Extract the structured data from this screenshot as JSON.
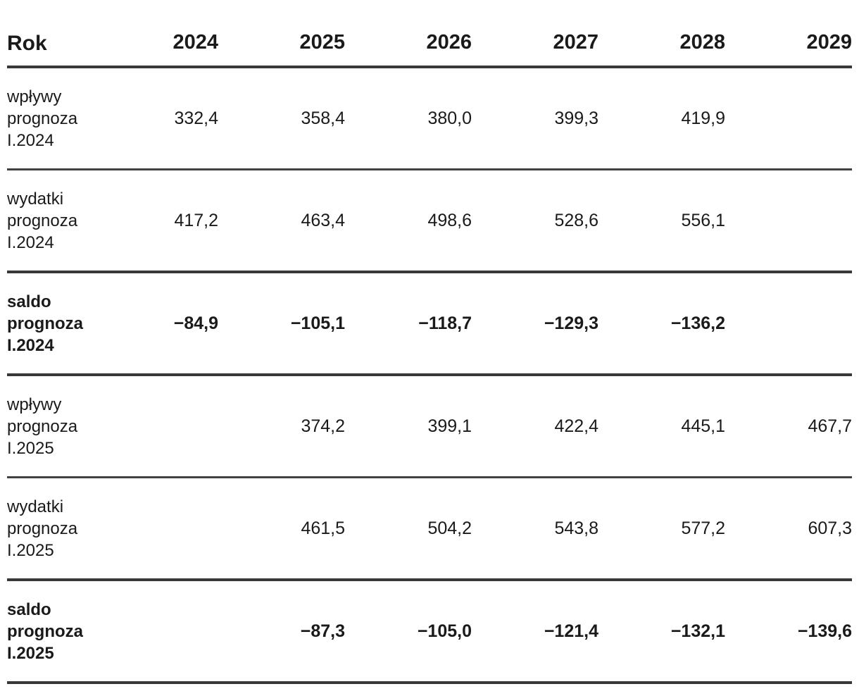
{
  "colors": {
    "text": "#1a1a1a",
    "rule_thick": "#383838",
    "rule_thin": "#414141",
    "background": "#ffffff"
  },
  "table": {
    "header": {
      "row_label": "Rok",
      "year_columns": [
        "2024",
        "2025",
        "2026",
        "2027",
        "2028",
        "2029"
      ]
    },
    "rows": [
      {
        "label_lines": [
          "wpływy",
          "prognoza",
          "I.2024"
        ],
        "bold": false,
        "rule_below": "thin",
        "values": [
          "332,4",
          "358,4",
          "380,0",
          "399,3",
          "419,9",
          ""
        ]
      },
      {
        "label_lines": [
          "wydatki",
          "prognoza",
          "I.2024"
        ],
        "bold": false,
        "rule_below": "thick",
        "values": [
          "417,2",
          "463,4",
          "498,6",
          "528,6",
          "556,1",
          ""
        ]
      },
      {
        "label_lines": [
          "saldo",
          "prognoza",
          "I.2024"
        ],
        "bold": true,
        "rule_below": "thick",
        "values": [
          "−84,9",
          "−105,1",
          "−118,7",
          "−129,3",
          "−136,2",
          ""
        ]
      },
      {
        "label_lines": [
          "wpływy",
          "prognoza",
          "I.2025"
        ],
        "bold": false,
        "rule_below": "thin",
        "values": [
          "",
          "374,2",
          "399,1",
          "422,4",
          "445,1",
          "467,7"
        ]
      },
      {
        "label_lines": [
          "wydatki",
          "prognoza",
          "I.2025"
        ],
        "bold": false,
        "rule_below": "thick",
        "values": [
          "",
          "461,5",
          "504,2",
          "543,8",
          "577,2",
          "607,3"
        ]
      },
      {
        "label_lines": [
          "saldo",
          "prognoza",
          "I.2025"
        ],
        "bold": true,
        "rule_below": "thick",
        "values": [
          "",
          "−87,3",
          "−105,0",
          "−121,4",
          "−132,1",
          "−139,6"
        ]
      }
    ]
  },
  "chart_data": {
    "type": "table",
    "title": "",
    "columns": [
      "Rok",
      "2024",
      "2025",
      "2026",
      "2027",
      "2028",
      "2029"
    ],
    "decimal_separator": ",",
    "series": [
      {
        "name": "wpływy prognoza I.2024",
        "values": [
          332.4,
          358.4,
          380.0,
          399.3,
          419.9,
          null
        ]
      },
      {
        "name": "wydatki prognoza I.2024",
        "values": [
          417.2,
          463.4,
          498.6,
          528.6,
          556.1,
          null
        ]
      },
      {
        "name": "saldo prognoza I.2024",
        "values": [
          -84.9,
          -105.1,
          -118.7,
          -129.3,
          -136.2,
          null
        ]
      },
      {
        "name": "wpływy prognoza I.2025",
        "values": [
          null,
          374.2,
          399.1,
          422.4,
          445.1,
          467.7
        ]
      },
      {
        "name": "wydatki prognoza I.2025",
        "values": [
          null,
          461.5,
          504.2,
          543.8,
          577.2,
          607.3
        ]
      },
      {
        "name": "saldo prognoza I.2025",
        "values": [
          null,
          -87.3,
          -105.0,
          -121.4,
          -132.1,
          -139.6
        ]
      }
    ]
  }
}
